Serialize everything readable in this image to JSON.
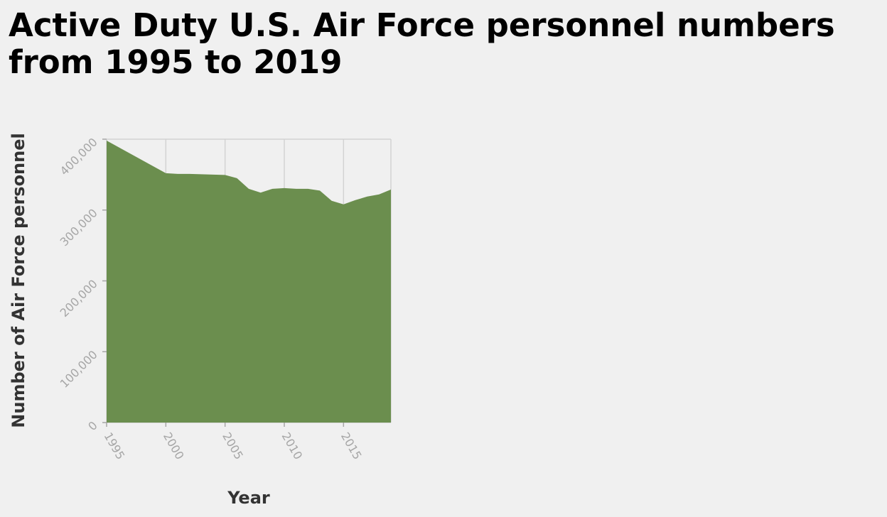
{
  "chart_data": {
    "type": "area",
    "title": "Active Duty U.S. Air Force personnel numbers from 1995 to 2019",
    "xlabel": "Year",
    "ylabel": "Number of Air Force personnel",
    "xlim": [
      1995,
      2019
    ],
    "ylim": [
      0,
      400000
    ],
    "x_ticks": [
      1995,
      2000,
      2005,
      2010,
      2015
    ],
    "x_tick_labels": [
      "1995",
      "2000",
      "2005",
      "2010",
      "2015"
    ],
    "y_ticks": [
      0,
      100000,
      200000,
      300000,
      400000
    ],
    "y_tick_labels": [
      "0",
      "100,000",
      "200,000",
      "300,000",
      "400,000"
    ],
    "grid": true,
    "fill_color": "#6b8e4e",
    "series": [
      {
        "x": [
          1995,
          2000,
          2001,
          2002,
          2003,
          2004,
          2005,
          2006,
          2007,
          2008,
          2009,
          2010,
          2011,
          2012,
          2013,
          2014,
          2015,
          2016,
          2017,
          2018,
          2019
        ],
        "values": [
          398000,
          352000,
          351000,
          351000,
          350500,
          350000,
          349500,
          345000,
          330000,
          324500,
          330000,
          331000,
          330000,
          330000,
          327500,
          313000,
          308000,
          314000,
          319000,
          322000,
          329000
        ]
      }
    ]
  }
}
